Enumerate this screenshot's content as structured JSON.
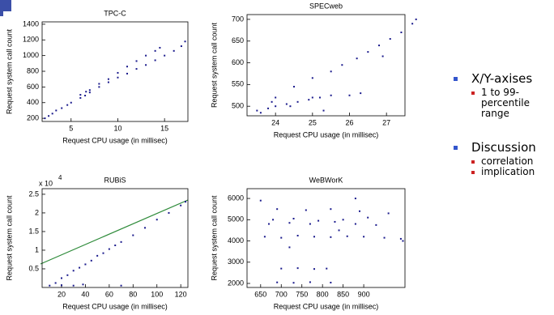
{
  "chart_data": [
    {
      "type": "scatter",
      "title": "TPC-C",
      "x_label": "Request CPU usage (in millisec)",
      "y_label": "Request system call count",
      "color": "#1a1a8c",
      "x": [
        2.2,
        2.6,
        3,
        3.4,
        4,
        4.6,
        5,
        6,
        6.5,
        7,
        8,
        9,
        10,
        11,
        12,
        13,
        14,
        15,
        16,
        16.8,
        17.2,
        6,
        6.6,
        7,
        8,
        9,
        10,
        11,
        12,
        13,
        14,
        14.5
      ],
      "values": [
        200,
        230,
        260,
        300,
        330,
        370,
        400,
        460,
        490,
        530,
        600,
        660,
        720,
        770,
        830,
        880,
        940,
        1000,
        1060,
        1120,
        1180,
        500,
        540,
        560,
        640,
        700,
        780,
        860,
        930,
        1000,
        1060,
        1100
      ],
      "xlim": [
        1.9,
        17.5
      ],
      "ylim": [
        160,
        1430
      ],
      "xticks": [
        5,
        10,
        15
      ],
      "yticks": [
        200,
        400,
        600,
        800,
        1000,
        1200,
        1400
      ]
    },
    {
      "type": "scatter",
      "title": "SPECweb",
      "x_label": "Request CPU usage (in millisec)",
      "y_label": "Request system call count",
      "color": "#1a1a8c",
      "x": [
        23.5,
        23.6,
        23.8,
        24,
        24.3,
        24.6,
        24.9,
        25.2,
        25.5,
        24,
        25,
        26,
        26.3,
        23.9,
        24.4,
        25.5,
        25.8,
        26.2,
        26.5,
        26.8,
        27.1,
        27.4,
        27.7,
        27.8,
        24.5,
        25,
        25.3,
        26.9
      ],
      "values": [
        490,
        485,
        495,
        500,
        505,
        510,
        515,
        520,
        525,
        520,
        520,
        525,
        530,
        510,
        500,
        580,
        595,
        610,
        625,
        640,
        655,
        670,
        690,
        700,
        545,
        565,
        490,
        615
      ],
      "xlim": [
        23.23,
        27.5
      ],
      "ylim": [
        478,
        711
      ],
      "xticks": [
        24,
        25,
        26,
        27
      ],
      "yticks": [
        500,
        550,
        600,
        650,
        700
      ]
    },
    {
      "type": "scatter",
      "title": "RUBiS",
      "x_label": "Request CPU usage (in millisec)",
      "y_label": "Request system call count",
      "color": "#1a1a8c",
      "y_scale_label": "x 10",
      "y_scale_exponent": "4",
      "x": [
        10,
        15,
        20,
        25,
        30,
        35,
        40,
        45,
        50,
        55,
        60,
        65,
        70,
        80,
        90,
        100,
        110,
        120,
        124,
        20,
        30,
        38,
        70
      ],
      "values": [
        0.05,
        0.12,
        0.25,
        0.33,
        0.45,
        0.53,
        0.62,
        0.72,
        0.85,
        0.92,
        1.03,
        1.13,
        1.22,
        1.4,
        1.6,
        1.82,
        2.0,
        2.2,
        2.3,
        0.06,
        0.05,
        0.08,
        0.05
      ],
      "xlim": [
        3.7,
        126
      ],
      "ylim": [
        0,
        2.65
      ],
      "xticks": [
        20,
        40,
        60,
        80,
        100,
        120
      ],
      "yticks": [
        0.5,
        1,
        1.5,
        2,
        2.5
      ]
    },
    {
      "type": "scatter",
      "title": "WeBWorK",
      "x_label": "Request CPU usage (in millisec)",
      "y_label": "Request system call count",
      "color": "#1a1a8c",
      "x": [
        660,
        700,
        740,
        780,
        820,
        860,
        900,
        950,
        990,
        670,
        720,
        770,
        830,
        880,
        930,
        680,
        730,
        790,
        850,
        910,
        690,
        760,
        820,
        890,
        960,
        700,
        740,
        780,
        810,
        690,
        730,
        770,
        820,
        650,
        880,
        995,
        720,
        840
      ],
      "values": [
        4200,
        4150,
        4250,
        4200,
        4180,
        4220,
        4200,
        4150,
        4100,
        4800,
        4850,
        4800,
        4900,
        4800,
        4750,
        5000,
        5050,
        4950,
        5000,
        5100,
        5500,
        5450,
        5500,
        5400,
        5300,
        2700,
        2720,
        2680,
        2700,
        2050,
        2030,
        2060,
        2040,
        5900,
        6000,
        4000,
        3700,
        4500
      ],
      "xlim": [
        617,
        1000
      ],
      "ylim": [
        1810,
        6460
      ],
      "xticks": [
        650,
        700,
        750,
        800,
        850,
        900
      ],
      "yticks": [
        2000,
        3000,
        4000,
        5000,
        6000
      ]
    }
  ],
  "bullets": [
    {
      "text": "X/Y-axises",
      "sub": [
        "1 to 99-percentile range"
      ]
    },
    {
      "text": "Discussion",
      "sub": [
        "correlation",
        "implication"
      ]
    }
  ]
}
